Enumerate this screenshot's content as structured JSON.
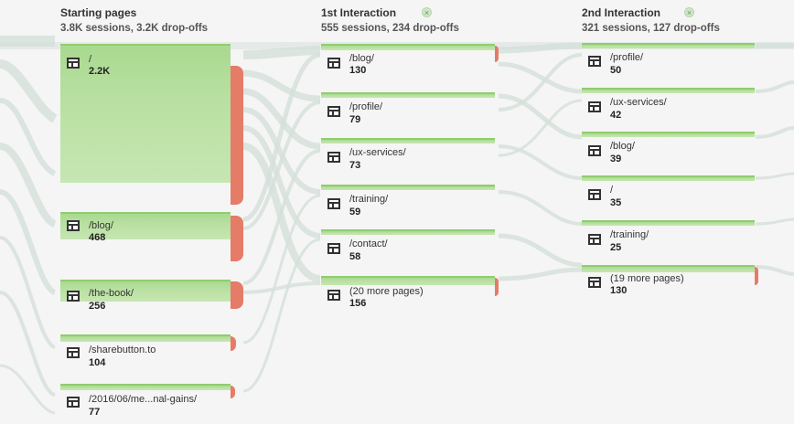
{
  "columns": [
    {
      "title": "Starting pages",
      "subtitle": "3.8K sessions, 3.2K drop-offs"
    },
    {
      "title": "1st Interaction",
      "subtitle": "555 sessions, 234 drop-offs"
    },
    {
      "title": "2nd Interaction",
      "subtitle": "321 sessions, 127 drop-offs"
    }
  ],
  "starting_pages": [
    {
      "page": "/",
      "count": "2.2K"
    },
    {
      "page": "/blog/",
      "count": "468"
    },
    {
      "page": "/the-book/",
      "count": "256"
    },
    {
      "page": "/sharebutton.to",
      "count": "104"
    },
    {
      "page": "/2016/06/me...nal-gains/",
      "count": "77"
    }
  ],
  "first_interaction": [
    {
      "page": "/blog/",
      "count": "130"
    },
    {
      "page": "/profile/",
      "count": "79"
    },
    {
      "page": "/ux-services/",
      "count": "73"
    },
    {
      "page": "/training/",
      "count": "59"
    },
    {
      "page": "/contact/",
      "count": "58"
    },
    {
      "page": "(20 more pages)",
      "count": "156"
    }
  ],
  "second_interaction": [
    {
      "page": "/profile/",
      "count": "50"
    },
    {
      "page": "/ux-services/",
      "count": "42"
    },
    {
      "page": "/blog/",
      "count": "39"
    },
    {
      "page": "/",
      "count": "35"
    },
    {
      "page": "/training/",
      "count": "25"
    },
    {
      "page": "(19 more pages)",
      "count": "130"
    }
  ],
  "colors": {
    "node_fill": "#b9e0a2",
    "node_border": "#8fcd6f",
    "dropoff": "#e47c68",
    "flow": "#d9e3de"
  },
  "icons": {
    "page": "page-icon",
    "close": "close-icon"
  }
}
